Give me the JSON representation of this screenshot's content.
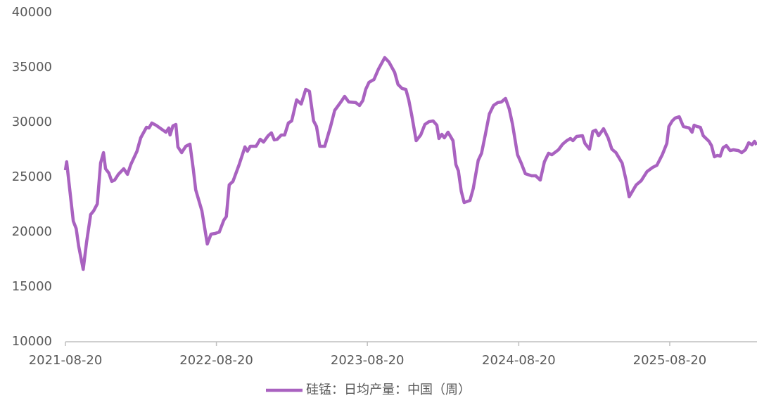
{
  "chart_data": {
    "type": "line",
    "x": [
      "2021-08-20",
      "2021-08-23",
      "2021-08-29",
      "2021-09-08",
      "2021-09-15",
      "2021-09-21",
      "2021-10-02",
      "2021-10-10",
      "2021-10-20",
      "2021-10-27",
      "2021-11-05",
      "2021-11-13",
      "2021-11-20",
      "2021-11-25",
      "2021-12-03",
      "2021-12-10",
      "2021-12-17",
      "2021-12-26",
      "2022-01-08",
      "2022-01-17",
      "2022-01-25",
      "2022-02-09",
      "2022-02-18",
      "2022-03-04",
      "2022-03-10",
      "2022-03-17",
      "2022-03-27",
      "2022-04-10",
      "2022-04-20",
      "2022-04-27",
      "2022-04-30",
      "2022-05-07",
      "2022-05-14",
      "2022-05-19",
      "2022-05-28",
      "2022-06-07",
      "2022-06-17",
      "2022-06-25",
      "2022-07-01",
      "2022-07-16",
      "2022-07-29",
      "2022-08-07",
      "2022-08-17",
      "2022-08-27",
      "2022-09-07",
      "2022-09-13",
      "2022-09-20",
      "2022-09-29",
      "2022-10-14",
      "2022-10-28",
      "2022-11-03",
      "2022-11-10",
      "2022-11-24",
      "2022-12-04",
      "2022-12-12",
      "2022-12-23",
      "2022-12-31",
      "2023-01-07",
      "2023-01-14",
      "2023-01-24",
      "2023-02-01",
      "2023-02-10",
      "2023-02-18",
      "2023-03-02",
      "2023-03-13",
      "2023-03-24",
      "2023-04-02",
      "2023-04-12",
      "2023-04-19",
      "2023-04-27",
      "2023-05-09",
      "2023-05-23",
      "2023-06-02",
      "2023-06-17",
      "2023-06-26",
      "2023-07-06",
      "2023-07-23",
      "2023-08-01",
      "2023-08-09",
      "2023-08-16",
      "2023-08-24",
      "2023-09-05",
      "2023-09-16",
      "2023-10-01",
      "2023-10-11",
      "2023-10-25",
      "2023-11-02",
      "2023-11-12",
      "2023-11-21",
      "2023-11-28",
      "2023-12-05",
      "2023-12-16",
      "2023-12-27",
      "2024-01-06",
      "2024-01-16",
      "2024-01-26",
      "2024-02-04",
      "2024-02-09",
      "2024-02-16",
      "2024-02-22",
      "2024-03-02",
      "2024-03-14",
      "2024-03-21",
      "2024-03-27",
      "2024-04-03",
      "2024-04-10",
      "2024-04-24",
      "2024-05-02",
      "2024-05-14",
      "2024-05-22",
      "2024-05-31",
      "2024-06-10",
      "2024-06-20",
      "2024-06-30",
      "2024-07-09",
      "2024-07-19",
      "2024-07-28",
      "2024-08-05",
      "2024-08-17",
      "2024-08-26",
      "2024-09-05",
      "2024-09-20",
      "2024-09-30",
      "2024-10-11",
      "2024-10-21",
      "2024-10-31",
      "2024-11-08",
      "2024-11-24",
      "2024-12-04",
      "2024-12-14",
      "2024-12-23",
      "2024-12-29",
      "2025-01-07",
      "2025-01-21",
      "2025-01-27",
      "2025-02-07",
      "2025-02-15",
      "2025-02-22",
      "2025-03-01",
      "2025-03-13",
      "2025-03-24",
      "2025-04-02",
      "2025-04-12",
      "2025-04-27",
      "2025-05-06",
      "2025-05-14",
      "2025-05-31",
      "2025-06-12",
      "2025-06-26",
      "2025-07-10",
      "2025-07-20",
      "2025-08-02",
      "2025-08-13",
      "2025-08-18",
      "2025-08-26",
      "2025-09-02",
      "2025-09-12",
      "2025-09-22",
      "2025-10-06",
      "2025-10-13",
      "2025-10-18",
      "2025-10-25",
      "2025-11-02",
      "2025-11-09",
      "2025-11-23",
      "2025-11-29",
      "2025-12-06",
      "2025-12-13",
      "2025-12-20",
      "2025-12-27",
      "2026-01-04",
      "2026-01-13",
      "2026-01-21",
      "2026-02-02",
      "2026-02-10",
      "2026-02-19",
      "2026-02-27",
      "2026-03-07",
      "2026-03-13",
      "2026-03-18"
    ],
    "series": [
      {
        "name": "硅锰：日均产量：中国（周）",
        "color": "#a962c0",
        "values": [
          25640,
          26400,
          24360,
          21000,
          20320,
          18720,
          16600,
          19040,
          21600,
          21920,
          22560,
          26280,
          27240,
          25770,
          25380,
          24620,
          24740,
          25260,
          25770,
          25260,
          26150,
          27370,
          28590,
          29550,
          29490,
          29940,
          29740,
          29360,
          29100,
          29490,
          28850,
          29680,
          29810,
          27760,
          27240,
          27820,
          28010,
          25770,
          23850,
          21920,
          18910,
          19810,
          19870,
          20000,
          21090,
          21410,
          24300,
          24620,
          26150,
          27760,
          27370,
          27820,
          27820,
          28460,
          28200,
          28780,
          29040,
          28400,
          28460,
          28850,
          28850,
          29940,
          30130,
          32050,
          31670,
          33010,
          32820,
          30130,
          29620,
          27820,
          27820,
          29620,
          31090,
          31860,
          32370,
          31860,
          31800,
          31540,
          31990,
          33010,
          33650,
          33910,
          34870,
          35900,
          35510,
          34550,
          33460,
          33080,
          33010,
          32050,
          30700,
          28330,
          28850,
          29810,
          30060,
          30130,
          29740,
          28530,
          28910,
          28590,
          29100,
          28330,
          26150,
          25580,
          23720,
          22690,
          22880,
          23970,
          26540,
          27180,
          28850,
          30770,
          31540,
          31800,
          31860,
          32180,
          31220,
          29810,
          27050,
          26280,
          25320,
          25130,
          25130,
          24740,
          26400,
          27180,
          27050,
          27500,
          28010,
          28330,
          28530,
          28330,
          28720,
          28780,
          28080,
          27560,
          29170,
          29290,
          28780,
          29420,
          28590,
          27560,
          27240,
          26280,
          24810,
          23210,
          24300,
          24680,
          25510,
          25900,
          26090,
          27050,
          28080,
          29620,
          30130,
          30390,
          30510,
          29620,
          29490,
          29100,
          29740,
          29620,
          29550,
          28780,
          28270,
          27880,
          26860,
          26990,
          26920,
          27690,
          27880,
          27430,
          27500,
          27430,
          27240,
          27500,
          28140,
          27950,
          28270,
          27950
        ]
      }
    ],
    "xlim": [
      "2021-08-20",
      "2026-03-19"
    ],
    "xticks": [
      "2021-08-20",
      "2022-08-20",
      "2023-08-20",
      "2024-08-20",
      "2025-08-20"
    ],
    "ylim": [
      10000,
      40000
    ],
    "yticks": [
      10000,
      15000,
      20000,
      25000,
      30000,
      35000,
      40000
    ],
    "grid": false,
    "legend": "bottom"
  }
}
